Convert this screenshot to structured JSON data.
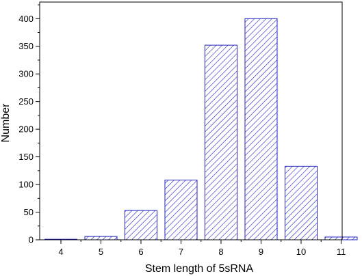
{
  "chart_data": {
    "type": "bar",
    "title": "",
    "xlabel": "Stem length of 5sRNA",
    "ylabel": "Number",
    "categories": [
      "4",
      "5",
      "6",
      "7",
      "8",
      "9",
      "10",
      "11"
    ],
    "values": [
      1,
      6,
      53,
      108,
      352,
      400,
      133,
      5
    ],
    "ylim": [
      0,
      430
    ],
    "yticks": [
      "0",
      "50",
      "100",
      "150",
      "200",
      "250",
      "300",
      "350",
      "400"
    ],
    "grid": false,
    "legend": "none",
    "colors": {
      "bar_edge": "#2020c0",
      "hatch": "#2020c0",
      "bar_fill": "#ffffff",
      "axis": "#000000"
    }
  }
}
